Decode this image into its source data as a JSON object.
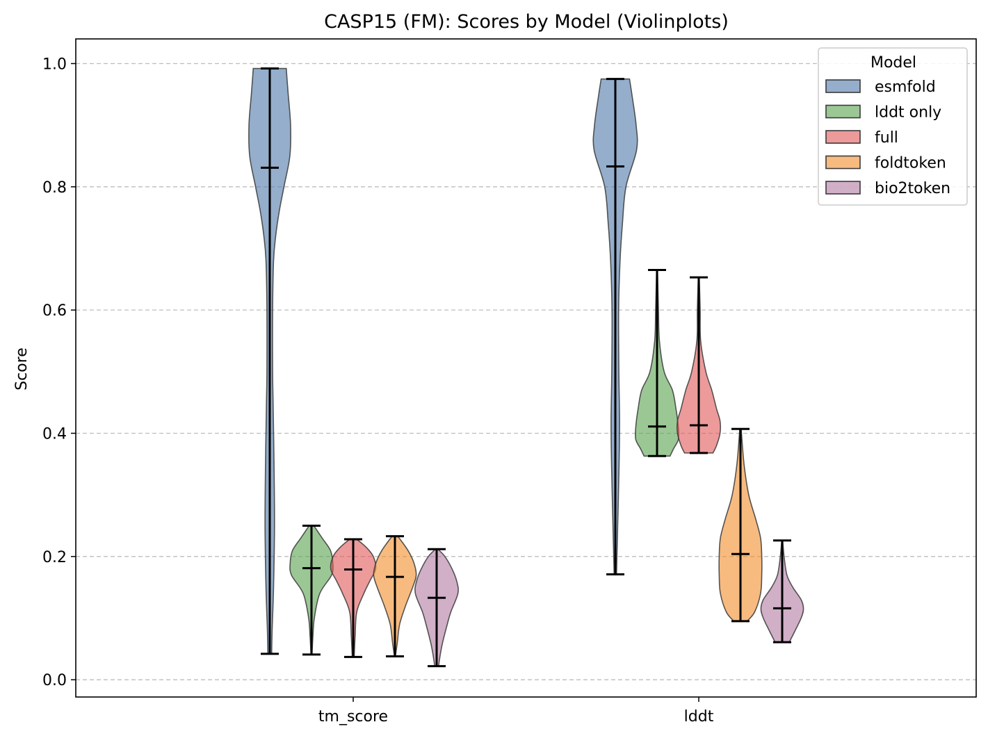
{
  "chart_data": {
    "type": "violin",
    "title": "CASP15 (FM): Scores by Model (Violinplots)",
    "xlabel": "",
    "ylabel": "Score",
    "ylim": [
      -0.028,
      1.04
    ],
    "yticks": [
      0.0,
      0.2,
      0.4,
      0.6,
      0.8,
      1.0
    ],
    "ytick_labels": [
      "0.0",
      "0.2",
      "0.4",
      "0.6",
      "0.8",
      "1.0"
    ],
    "categories": [
      "tm_score",
      "lddt"
    ],
    "grid": "y dashed",
    "legend": {
      "title": "Model",
      "placement": "top-right"
    },
    "series": [
      {
        "name": "esmfold",
        "color": "#4c78a8",
        "stats": [
          {
            "category": "tm_score",
            "min": 0.042,
            "max": 0.992,
            "median": 0.831
          },
          {
            "category": "lddt",
            "min": 0.171,
            "max": 0.975,
            "median": 0.833
          }
        ],
        "profiles": [
          [
            [
              0.042,
              0.008
            ],
            [
              0.08,
              0.01
            ],
            [
              0.15,
              0.016
            ],
            [
              0.25,
              0.02
            ],
            [
              0.35,
              0.018
            ],
            [
              0.45,
              0.014
            ],
            [
              0.5,
              0.012
            ],
            [
              0.6,
              0.012
            ],
            [
              0.68,
              0.016
            ],
            [
              0.72,
              0.025
            ],
            [
              0.76,
              0.04
            ],
            [
              0.8,
              0.06
            ],
            [
              0.85,
              0.085
            ],
            [
              0.9,
              0.088
            ],
            [
              0.95,
              0.078
            ],
            [
              0.98,
              0.072
            ],
            [
              0.992,
              0.07
            ]
          ],
          [
            [
              0.171,
              0.005
            ],
            [
              0.25,
              0.01
            ],
            [
              0.35,
              0.016
            ],
            [
              0.42,
              0.018
            ],
            [
              0.5,
              0.015
            ],
            [
              0.6,
              0.014
            ],
            [
              0.68,
              0.02
            ],
            [
              0.74,
              0.03
            ],
            [
              0.8,
              0.045
            ],
            [
              0.86,
              0.09
            ],
            [
              0.9,
              0.088
            ],
            [
              0.95,
              0.07
            ],
            [
              0.975,
              0.06
            ]
          ]
        ]
      },
      {
        "name": "lddt only",
        "color": "#59a14f",
        "stats": [
          {
            "category": "tm_score",
            "min": 0.041,
            "max": 0.25,
            "median": 0.181
          },
          {
            "category": "lddt",
            "min": 0.363,
            "max": 0.665,
            "median": 0.411
          }
        ],
        "profiles": [
          [
            [
              0.041,
              0.002
            ],
            [
              0.07,
              0.006
            ],
            [
              0.1,
              0.012
            ],
            [
              0.14,
              0.035
            ],
            [
              0.17,
              0.085
            ],
            [
              0.19,
              0.09
            ],
            [
              0.21,
              0.08
            ],
            [
              0.23,
              0.045
            ],
            [
              0.25,
              0.01
            ]
          ],
          [
            [
              0.363,
              0.055
            ],
            [
              0.375,
              0.07
            ],
            [
              0.39,
              0.09
            ],
            [
              0.41,
              0.09
            ],
            [
              0.44,
              0.08
            ],
            [
              0.47,
              0.065
            ],
            [
              0.5,
              0.03
            ],
            [
              0.55,
              0.01
            ],
            [
              0.6,
              0.006
            ],
            [
              0.665,
              0.002
            ]
          ]
        ]
      },
      {
        "name": "full",
        "color": "#e15759",
        "stats": [
          {
            "category": "tm_score",
            "min": 0.037,
            "max": 0.228,
            "median": 0.179
          },
          {
            "category": "lddt",
            "min": 0.368,
            "max": 0.653,
            "median": 0.413
          }
        ],
        "profiles": [
          [
            [
              0.037,
              0.004
            ],
            [
              0.07,
              0.008
            ],
            [
              0.11,
              0.015
            ],
            [
              0.14,
              0.045
            ],
            [
              0.16,
              0.07
            ],
            [
              0.18,
              0.095
            ],
            [
              0.2,
              0.085
            ],
            [
              0.215,
              0.055
            ],
            [
              0.228,
              0.015
            ]
          ],
          [
            [
              0.368,
              0.06
            ],
            [
              0.38,
              0.075
            ],
            [
              0.4,
              0.09
            ],
            [
              0.42,
              0.09
            ],
            [
              0.44,
              0.075
            ],
            [
              0.47,
              0.055
            ],
            [
              0.5,
              0.03
            ],
            [
              0.55,
              0.008
            ],
            [
              0.6,
              0.006
            ],
            [
              0.653,
              0.002
            ]
          ]
        ]
      },
      {
        "name": "foldtoken",
        "color": "#f28e2b",
        "stats": [
          {
            "category": "tm_score",
            "min": 0.038,
            "max": 0.233,
            "median": 0.167
          },
          {
            "category": "lddt",
            "min": 0.095,
            "max": 0.407,
            "median": 0.204
          }
        ],
        "profiles": [
          [
            [
              0.038,
              0.002
            ],
            [
              0.06,
              0.01
            ],
            [
              0.09,
              0.02
            ],
            [
              0.12,
              0.045
            ],
            [
              0.15,
              0.075
            ],
            [
              0.17,
              0.09
            ],
            [
              0.19,
              0.08
            ],
            [
              0.21,
              0.055
            ],
            [
              0.233,
              0.012
            ]
          ],
          [
            [
              0.095,
              0.028
            ],
            [
              0.11,
              0.06
            ],
            [
              0.14,
              0.085
            ],
            [
              0.17,
              0.09
            ],
            [
              0.2,
              0.09
            ],
            [
              0.23,
              0.085
            ],
            [
              0.26,
              0.065
            ],
            [
              0.3,
              0.035
            ],
            [
              0.35,
              0.015
            ],
            [
              0.407,
              0.003
            ]
          ]
        ]
      },
      {
        "name": "bio2token",
        "color": "#b07aa1",
        "stats": [
          {
            "category": "tm_score",
            "min": 0.022,
            "max": 0.212,
            "median": 0.133
          },
          {
            "category": "lddt",
            "min": 0.061,
            "max": 0.226,
            "median": 0.116
          }
        ],
        "profiles": [
          [
            [
              0.022,
              0.008
            ],
            [
              0.04,
              0.015
            ],
            [
              0.06,
              0.025
            ],
            [
              0.09,
              0.045
            ],
            [
              0.11,
              0.06
            ],
            [
              0.14,
              0.09
            ],
            [
              0.16,
              0.085
            ],
            [
              0.18,
              0.065
            ],
            [
              0.2,
              0.035
            ],
            [
              0.212,
              0.005
            ]
          ],
          [
            [
              0.061,
              0.03
            ],
            [
              0.08,
              0.055
            ],
            [
              0.1,
              0.08
            ],
            [
              0.115,
              0.09
            ],
            [
              0.13,
              0.08
            ],
            [
              0.15,
              0.045
            ],
            [
              0.17,
              0.02
            ],
            [
              0.2,
              0.008
            ],
            [
              0.226,
              0.002
            ]
          ]
        ]
      }
    ]
  }
}
